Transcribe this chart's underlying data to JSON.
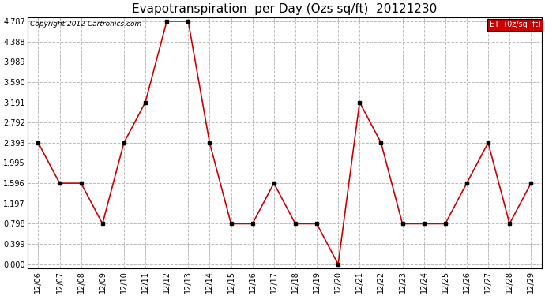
{
  "title": "Evapotranspiration  per Day (Ozs sq/ft)  20121230",
  "copyright": "Copyright 2012 Cartronics.com",
  "legend_label": "ET  (0z/sq  ft)",
  "x_labels": [
    "12/06",
    "12/07",
    "12/08",
    "12/09",
    "12/10",
    "12/11",
    "12/12",
    "12/13",
    "12/14",
    "12/15",
    "12/16",
    "12/17",
    "12/18",
    "12/19",
    "12/20",
    "12/21",
    "12/22",
    "12/23",
    "12/24",
    "12/25",
    "12/26",
    "12/27",
    "12/28",
    "12/29"
  ],
  "y_values": [
    2.393,
    1.596,
    1.596,
    0.798,
    2.393,
    3.191,
    4.787,
    4.787,
    2.393,
    0.798,
    0.798,
    1.596,
    0.798,
    0.798,
    0.0,
    3.191,
    2.393,
    0.798,
    0.798,
    0.798,
    1.596,
    2.393,
    0.798,
    1.596
  ],
  "y_ticks": [
    0.0,
    0.399,
    0.798,
    1.197,
    1.596,
    1.995,
    2.393,
    2.792,
    3.191,
    3.59,
    3.989,
    4.388,
    4.787
  ],
  "y_min": 0.0,
  "y_max": 4.787,
  "line_color": "#cc0000",
  "marker_color": "#000000",
  "background_color": "#ffffff",
  "grid_color": "#bbbbbb",
  "title_fontsize": 11,
  "copyright_fontsize": 6.5,
  "tick_fontsize": 7,
  "legend_bg": "#cc0000",
  "legend_text_color": "#ffffff",
  "legend_fontsize": 7
}
